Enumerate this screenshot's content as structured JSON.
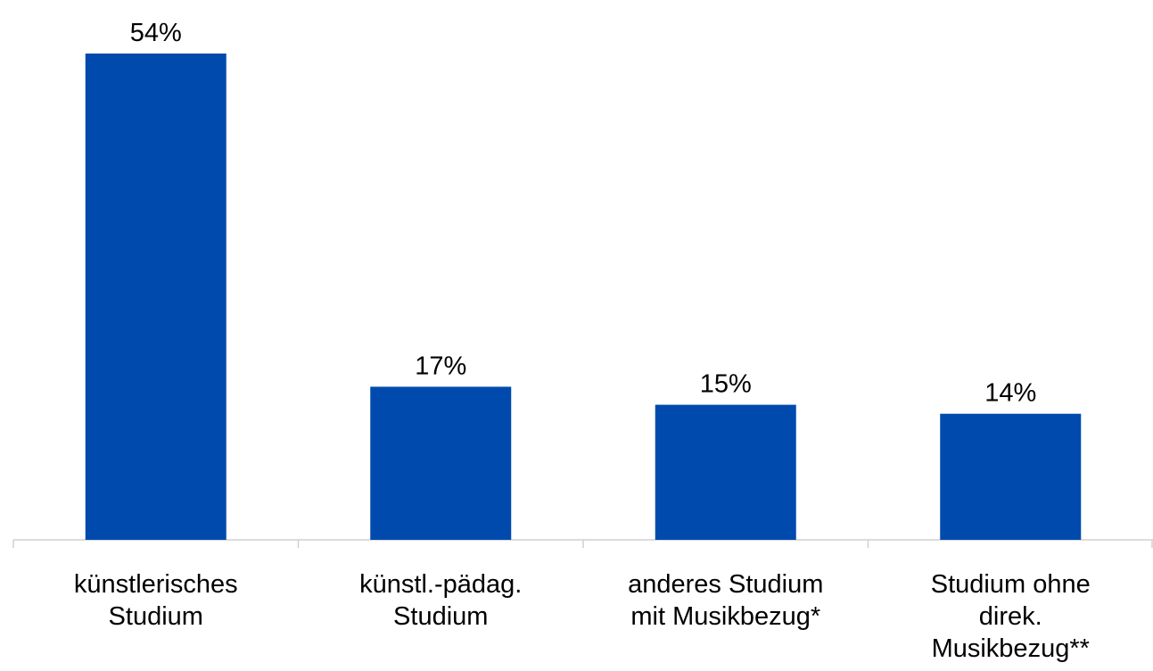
{
  "chart_data": {
    "type": "bar",
    "categories": [
      "künstlerisches\nStudium",
      "künstl.-pädag.\nStudium",
      "anderes Studium\nmit Musikbezug*",
      "Studium ohne\ndirek.\nMusikbezug**"
    ],
    "values": [
      54,
      17,
      15,
      14
    ],
    "value_labels": [
      "54%",
      "17%",
      "15%",
      "14%"
    ],
    "color": "#004aad"
  }
}
